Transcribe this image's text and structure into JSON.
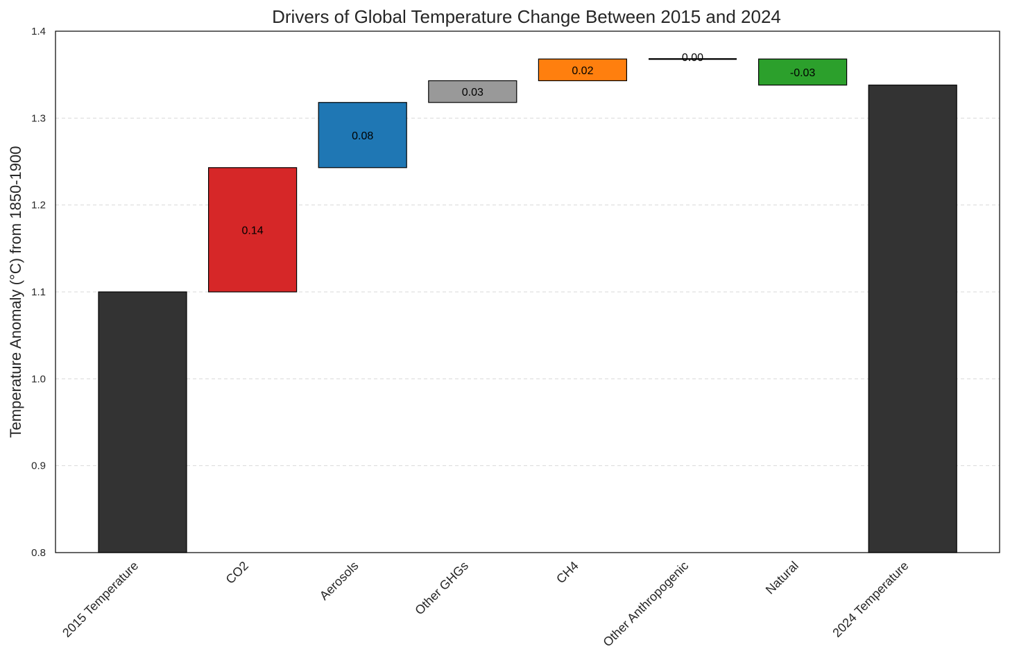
{
  "chart_data": {
    "type": "bar",
    "subtype": "waterfall",
    "title": "Drivers of Global Temperature Change Between 2015 and 2024",
    "ylabel": "Temperature Anomaly (°C) from 1850-1900",
    "xlabel": "",
    "ylim": [
      0.8,
      1.4
    ],
    "yticks": [
      "0.8",
      "0.9",
      "1.0",
      "1.1",
      "1.2",
      "1.3",
      "1.4"
    ],
    "grid": true,
    "categories": [
      "2015 Temperature",
      "CO2",
      "Aerosols",
      "Other GHGs",
      "CH4",
      "Other Anthropogenic",
      "Natural",
      "2024 Temperature"
    ],
    "bars": [
      {
        "category": "2015 Temperature",
        "kind": "total",
        "bottom": 0.8,
        "top": 1.1,
        "label": "",
        "color": "#333333"
      },
      {
        "category": "CO2",
        "kind": "delta",
        "bottom": 1.1,
        "top": 1.243,
        "label": "0.14",
        "color": "#d62728"
      },
      {
        "category": "Aerosols",
        "kind": "delta",
        "bottom": 1.243,
        "top": 1.318,
        "label": "0.08",
        "color": "#1f77b4"
      },
      {
        "category": "Other GHGs",
        "kind": "delta",
        "bottom": 1.318,
        "top": 1.343,
        "label": "0.03",
        "color": "#999999"
      },
      {
        "category": "CH4",
        "kind": "delta",
        "bottom": 1.343,
        "top": 1.368,
        "label": "0.02",
        "color": "#ff7f0e"
      },
      {
        "category": "Other Anthropogenic",
        "kind": "delta",
        "bottom": 1.368,
        "top": 1.368,
        "label": "0.00",
        "color": "#000000"
      },
      {
        "category": "Natural",
        "kind": "delta",
        "bottom": 1.338,
        "top": 1.368,
        "label": "-0.03",
        "color": "#2ca02c"
      },
      {
        "category": "2024 Temperature",
        "kind": "total",
        "bottom": 0.8,
        "top": 1.338,
        "label": "",
        "color": "#333333"
      }
    ]
  }
}
